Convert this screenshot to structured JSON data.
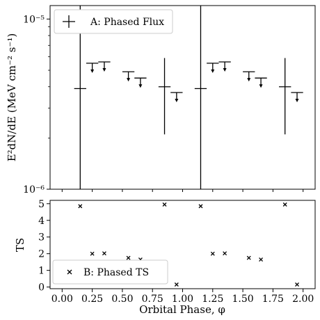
{
  "chart_data": [
    {
      "type": "scatter",
      "panel": "A",
      "ylabel": "E²dN/dE (MeV cm⁻² s⁻¹)",
      "yscale": "log",
      "ylim": [
        1e-06,
        1.2e-05
      ],
      "xlim": [
        -0.1,
        2.1
      ],
      "y_tick_labels": [
        "10⁻⁶",
        "10⁻⁵"
      ],
      "legend": {
        "label": "A: Phased Flux",
        "placement": "top-left"
      },
      "series": [
        {
          "name": "A: Phased Flux",
          "points": [
            {
              "x": 0.15,
              "y": 3.9e-06,
              "yerr_low": 1e-06,
              "yerr_high": 1.2e-05,
              "xerr": 0.05
            },
            {
              "x": 0.85,
              "y": 4e-06,
              "yerr_low": 2.1e-06,
              "yerr_high": 5.9e-06,
              "xerr": 0.05
            },
            {
              "x": 1.15,
              "y": 3.9e-06,
              "yerr_low": 1e-06,
              "yerr_high": 1.2e-05,
              "xerr": 0.05
            },
            {
              "x": 1.85,
              "y": 4e-06,
              "yerr_low": 2.1e-06,
              "yerr_high": 5.9e-06,
              "xerr": 0.05
            }
          ],
          "upper_limits": [
            {
              "x": 0.25,
              "y": 5.5e-06
            },
            {
              "x": 0.35,
              "y": 5.6e-06
            },
            {
              "x": 0.55,
              "y": 4.9e-06
            },
            {
              "x": 0.65,
              "y": 4.5e-06
            },
            {
              "x": 0.95,
              "y": 3.7e-06
            },
            {
              "x": 1.25,
              "y": 5.5e-06
            },
            {
              "x": 1.35,
              "y": 5.6e-06
            },
            {
              "x": 1.55,
              "y": 4.9e-06
            },
            {
              "x": 1.65,
              "y": 4.5e-06
            },
            {
              "x": 1.95,
              "y": 3.7e-06
            }
          ]
        }
      ]
    },
    {
      "type": "scatter",
      "panel": "B",
      "xlabel": "Orbital Phase, φ",
      "ylabel": "TS",
      "xlim": [
        -0.1,
        2.1
      ],
      "ylim": [
        -0.1,
        5.2
      ],
      "x_ticks": [
        0.0,
        0.25,
        0.5,
        0.75,
        1.0,
        1.25,
        1.5,
        1.75,
        2.0
      ],
      "x_tick_labels": [
        "0.00",
        "0.25",
        "0.50",
        "0.75",
        "1.00",
        "1.25",
        "1.50",
        "1.75",
        "2.00"
      ],
      "y_ticks": [
        0,
        1,
        2,
        3,
        4,
        5
      ],
      "y_tick_labels": [
        "0",
        "1",
        "2",
        "3",
        "4",
        "5"
      ],
      "legend": {
        "label": "B: Phased TS",
        "placement": "bottom-left"
      },
      "series": [
        {
          "name": "B: Phased TS",
          "x": [
            0.15,
            0.25,
            0.35,
            0.55,
            0.65,
            0.85,
            0.95,
            1.15,
            1.25,
            1.35,
            1.55,
            1.65,
            1.85,
            1.95
          ],
          "y": [
            4.85,
            2.0,
            2.02,
            1.75,
            1.65,
            4.95,
            0.15,
            4.85,
            2.0,
            2.02,
            1.75,
            1.65,
            4.95,
            0.15
          ]
        }
      ]
    }
  ]
}
